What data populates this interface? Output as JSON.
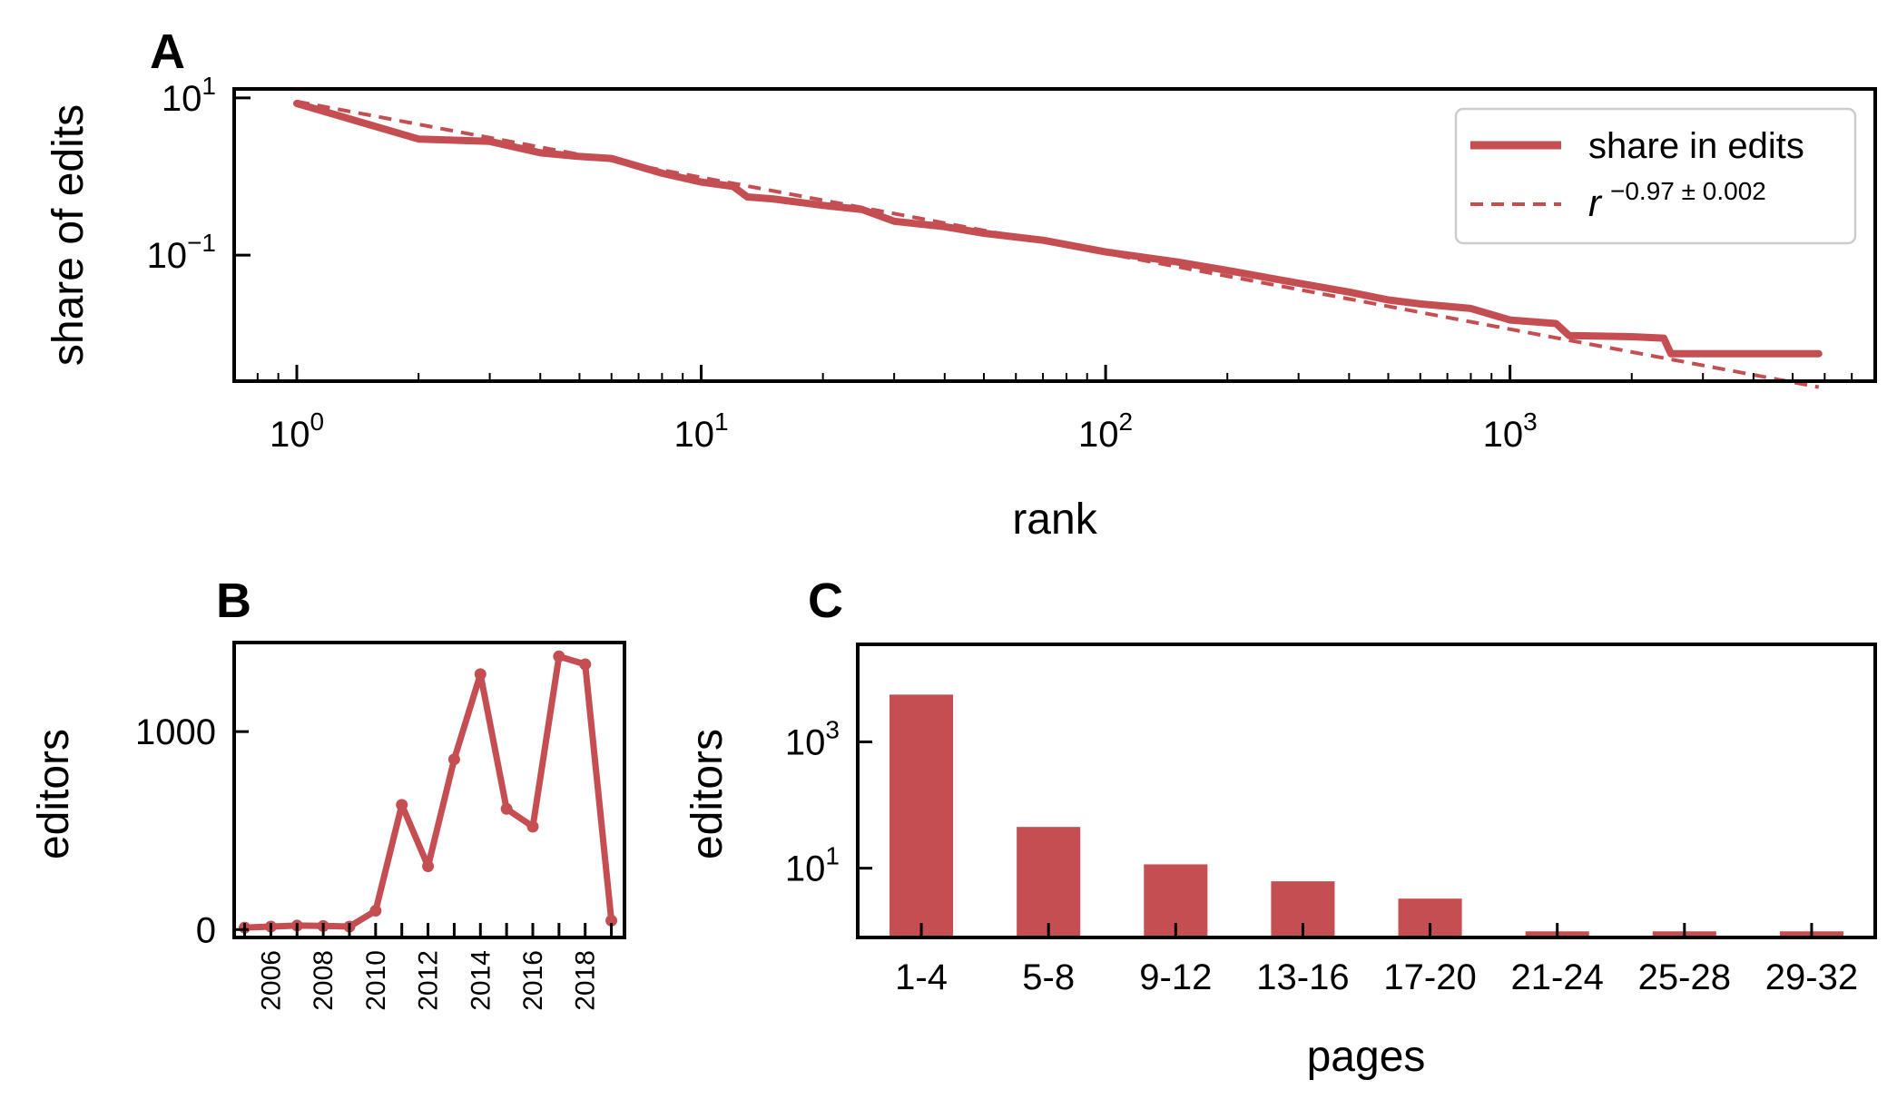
{
  "colors": {
    "series": "#c44e52",
    "axis": "#000000",
    "background": "#ffffff"
  },
  "panels": {
    "a": "A",
    "b": "B",
    "c": "C"
  },
  "chart_data": [
    {
      "id": "A",
      "type": "line",
      "title": "",
      "xlabel": "rank",
      "ylabel": "share of edits",
      "xscale": "log",
      "yscale": "log",
      "xlim": [
        0.7,
        8000
      ],
      "ylim": [
        0.0025,
        13
      ],
      "x_ticks": [
        {
          "value": 1,
          "base": "10",
          "exp": "0"
        },
        {
          "value": 10,
          "base": "10",
          "exp": "1"
        },
        {
          "value": 100,
          "base": "10",
          "exp": "2"
        },
        {
          "value": 1000,
          "base": "10",
          "exp": "3"
        }
      ],
      "y_ticks": [
        {
          "value": 10,
          "base": "10",
          "exp": "1"
        },
        {
          "value": 0.1,
          "base": "10",
          "exp": "−1"
        }
      ],
      "legend": {
        "position": "top-right",
        "entries": [
          {
            "label": "share in edits",
            "style": "solid"
          },
          {
            "base": "r",
            "exp": "−0.97 ± 0.002",
            "style": "dashed"
          }
        ]
      },
      "series": [
        {
          "name": "share in edits",
          "x": [
            1,
            2,
            3,
            4,
            5,
            6,
            8,
            10,
            12,
            13,
            15,
            20,
            25,
            30,
            40,
            50,
            70,
            100,
            150,
            200,
            300,
            400,
            500,
            600,
            800,
            1000,
            1300,
            1400,
            2000,
            2400,
            2500,
            3500,
            5800
          ],
          "y": [
            8.5,
            3.0,
            2.8,
            2.0,
            1.8,
            1.7,
            1.1,
            0.85,
            0.75,
            0.55,
            0.52,
            0.43,
            0.38,
            0.27,
            0.23,
            0.19,
            0.155,
            0.11,
            0.082,
            0.064,
            0.044,
            0.034,
            0.027,
            0.024,
            0.021,
            0.015,
            0.0135,
            0.0095,
            0.0092,
            0.0088,
            0.0056,
            0.0056,
            0.0056
          ]
        },
        {
          "name": "power-law fit",
          "x": [
            1,
            5800
          ],
          "y": [
            9.0,
            0.0021
          ]
        }
      ]
    },
    {
      "id": "B",
      "type": "line",
      "title": "",
      "xlabel": "",
      "ylabel": "editors",
      "xlim": [
        2004.6,
        2019.5
      ],
      "ylim": [
        -40,
        1450
      ],
      "x_ticks": [
        2006,
        2008,
        2010,
        2012,
        2014,
        2016,
        2018
      ],
      "x_ticks_minor": [
        2005,
        2007,
        2009,
        2011,
        2013,
        2015,
        2017,
        2019
      ],
      "y_ticks": [
        0,
        1000
      ],
      "x": [
        2005,
        2006,
        2007,
        2008,
        2009,
        2010,
        2011,
        2012,
        2013,
        2014,
        2015,
        2016,
        2017,
        2018,
        2019
      ],
      "values": [
        10,
        15,
        20,
        18,
        15,
        95,
        630,
        320,
        860,
        1290,
        610,
        520,
        1380,
        1340,
        45
      ]
    },
    {
      "id": "C",
      "type": "bar",
      "title": "",
      "xlabel": "pages",
      "ylabel": "editors",
      "yscale": "log",
      "ylim": [
        0.8,
        35000
      ],
      "categories": [
        "1-4",
        "5-8",
        "9-12",
        "13-16",
        "17-20",
        "21-24",
        "25-28",
        "29-32"
      ],
      "values": [
        5600,
        45,
        11.5,
        6.2,
        3.3,
        1,
        1,
        1
      ],
      "y_ticks": [
        {
          "value": 1000,
          "base": "10",
          "exp": "3"
        },
        {
          "value": 10,
          "base": "10",
          "exp": "1"
        }
      ]
    }
  ]
}
